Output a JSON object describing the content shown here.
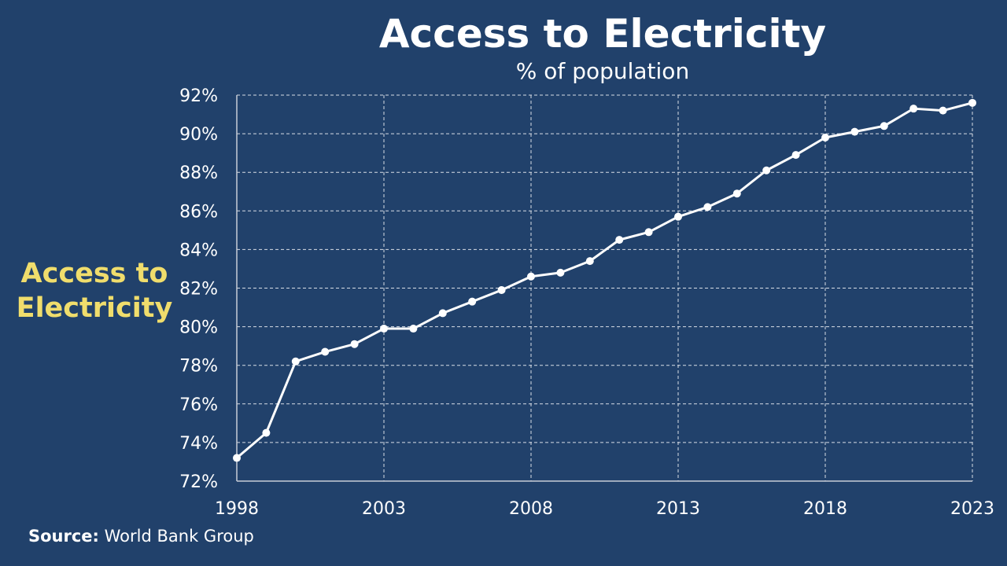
{
  "chart_data": {
    "type": "line",
    "title": "Access to Electricity",
    "subtitle": "% of population",
    "ylabel": "Access to Electricity",
    "xlabel": "",
    "x": [
      1998,
      1999,
      2000,
      2001,
      2002,
      2003,
      2004,
      2005,
      2006,
      2007,
      2008,
      2009,
      2010,
      2011,
      2012,
      2013,
      2014,
      2015,
      2016,
      2017,
      2018,
      2019,
      2020,
      2021,
      2022,
      2023
    ],
    "series": [
      {
        "name": "Access to Electricity",
        "values": [
          73.2,
          74.5,
          78.2,
          78.7,
          79.1,
          79.9,
          79.9,
          80.7,
          81.3,
          81.9,
          82.6,
          82.8,
          83.4,
          84.5,
          84.9,
          85.7,
          86.2,
          86.9,
          88.1,
          88.9,
          89.8,
          90.1,
          90.4,
          91.3,
          91.2,
          91.6
        ]
      }
    ],
    "xlim": [
      1998,
      2023
    ],
    "ylim": [
      72,
      92
    ],
    "xticks": [
      "1998",
      "2003",
      "2008",
      "2013",
      "2018",
      "2023"
    ],
    "yticks": [
      "72%",
      "74%",
      "76%",
      "78%",
      "80%",
      "82%",
      "84%",
      "86%",
      "88%",
      "90%",
      "92%"
    ],
    "grid": true,
    "colors": {
      "line": "#ffffff",
      "background": "#21416b",
      "ylabel": "#f0dd6c"
    }
  },
  "source": {
    "label": "Source:",
    "text": "World Bank Group"
  }
}
